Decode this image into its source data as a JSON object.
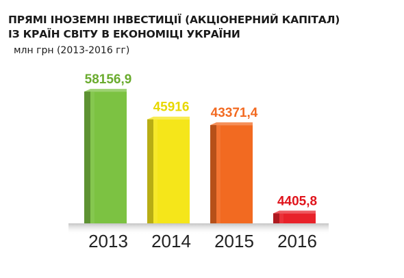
{
  "chart_data": {
    "type": "bar",
    "title_lines": [
      "ПРЯМІ ІНОЗЕМНІ ІНВЕСТИЦІЇ (АКЦІОНЕРНИЙ КАПІТАЛ)",
      "ІЗ КРАЇН СВІТУ В ЕКОНОМІЦІ УКРАЇНИ"
    ],
    "subtitle": "млн грн (2013-2016 гг)",
    "categories": [
      "2013",
      "2014",
      "2015",
      "2016"
    ],
    "values": [
      58156.9,
      45916,
      43371.4,
      4405.8
    ],
    "value_labels": [
      "58156,9",
      "45916",
      "43371,4",
      "4405,8"
    ],
    "colors": [
      "#7cc242",
      "#f5e61a",
      "#f26a21",
      "#e8222a"
    ],
    "label_colors": [
      "#6aab2e",
      "#e8d800",
      "#f26a21",
      "#e0141c"
    ],
    "ylim": [
      0,
      60000
    ],
    "grid": false,
    "legend": "none"
  }
}
